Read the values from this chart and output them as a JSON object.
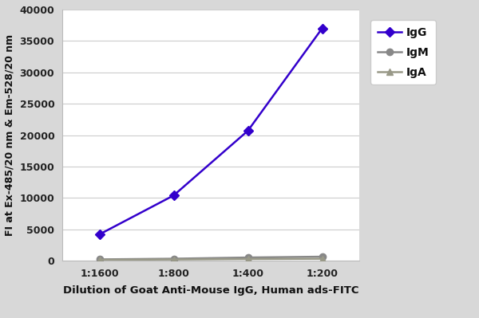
{
  "x_labels": [
    "1:1600",
    "1:800",
    "1:400",
    "1:200"
  ],
  "x_values": [
    1,
    2,
    3,
    4
  ],
  "IgG_values": [
    4200,
    10400,
    20700,
    37000
  ],
  "IgM_values": [
    220,
    330,
    520,
    650
  ],
  "IgA_values": [
    150,
    200,
    280,
    320
  ],
  "IgG_color": "#3300CC",
  "IgM_color": "#888888",
  "IgA_color": "#999988",
  "ylabel": "FI at Ex-485/20 nm & Em-528/20 nm",
  "xlabel": "Dilution of Goat Anti-Mouse IgG, Human ads-FITC",
  "ylim": [
    0,
    40000
  ],
  "yticks": [
    0,
    5000,
    10000,
    15000,
    20000,
    25000,
    30000,
    35000,
    40000
  ],
  "figure_bg": "#d8d8d8",
  "plot_bg": "#ffffff",
  "grid_color": "#cccccc",
  "axis_label_fontsize": 9.5,
  "tick_fontsize": 9,
  "legend_fontsize": 10
}
